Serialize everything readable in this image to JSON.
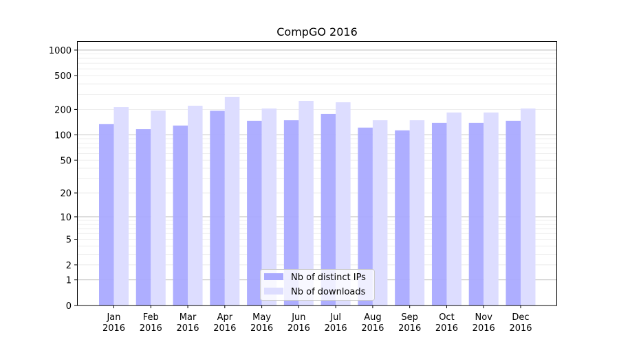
{
  "chart_data": {
    "type": "bar",
    "title": "CompGO 2016",
    "xlabel": "",
    "ylabel": "",
    "yscale": "symlog (log10(1+y))",
    "ylim": [
      0,
      1250
    ],
    "yticks": [
      0,
      1,
      2,
      5,
      10,
      20,
      50,
      100,
      200,
      500,
      1000
    ],
    "ytick_labels": [
      "0",
      "1",
      "2",
      "5",
      "10",
      "20",
      "50",
      "100",
      "200",
      "500",
      "1000"
    ],
    "grid": true,
    "legend_position": "bottom-center",
    "categories": [
      [
        "Jan",
        "2016"
      ],
      [
        "Feb",
        "2016"
      ],
      [
        "Mar",
        "2016"
      ],
      [
        "Apr",
        "2016"
      ],
      [
        "May",
        "2016"
      ],
      [
        "Jun",
        "2016"
      ],
      [
        "Jul",
        "2016"
      ],
      [
        "Aug",
        "2016"
      ],
      [
        "Sep",
        "2016"
      ],
      [
        "Oct",
        "2016"
      ],
      [
        "Nov",
        "2016"
      ],
      [
        "Dec",
        "2016"
      ]
    ],
    "series": [
      {
        "name": "Nb of distinct IPs",
        "color": "#aaaaff",
        "values": [
          134,
          117,
          129,
          193,
          147,
          149,
          177,
          122,
          113,
          139,
          139,
          147
        ]
      },
      {
        "name": "Nb of downloads",
        "color": "#ddddff",
        "values": [
          213,
          194,
          221,
          282,
          205,
          252,
          243,
          149,
          149,
          184,
          184,
          205
        ]
      }
    ]
  }
}
